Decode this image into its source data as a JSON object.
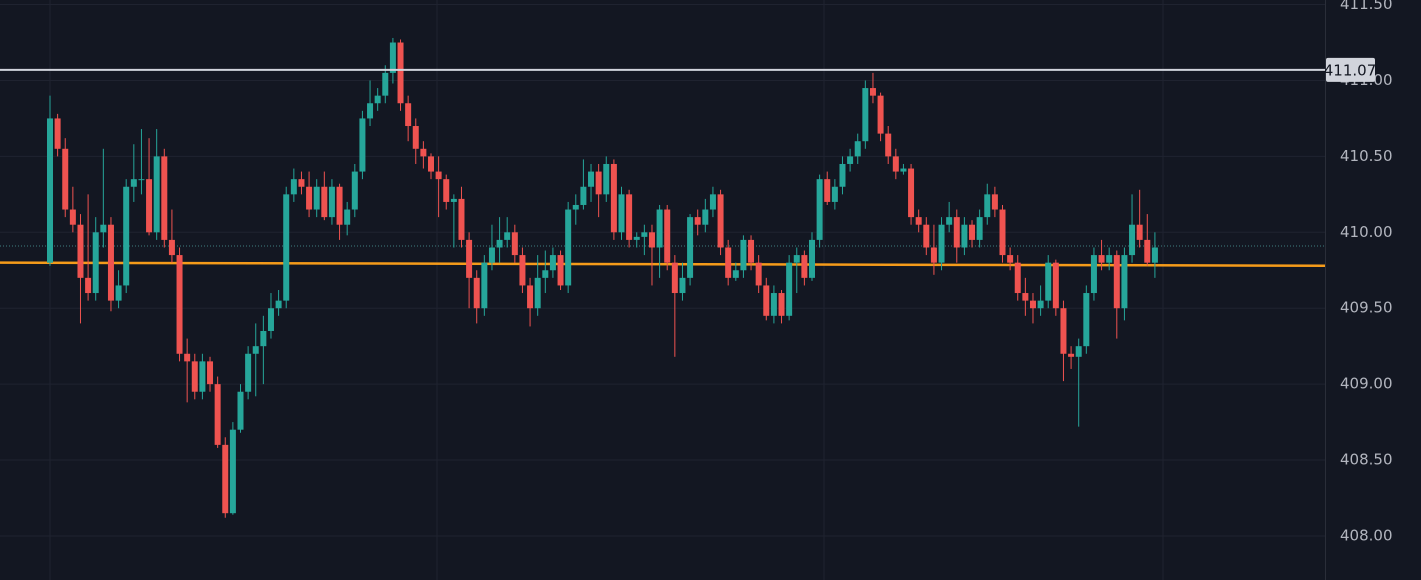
{
  "chart_data": {
    "type": "candlestick",
    "up_color": "#26a69a",
    "down_color": "#ef5350",
    "ylim": [
      407.71,
      411.53
    ],
    "yticks": [
      {
        "value": 408,
        "label": "408.00"
      },
      {
        "value": 408.5,
        "label": "408.50"
      },
      {
        "value": 409,
        "label": "409.00"
      },
      {
        "value": 409.5,
        "label": "409.50"
      },
      {
        "value": 410,
        "label": "410.00"
      },
      {
        "value": 410.5,
        "label": "410.50"
      },
      {
        "value": 411,
        "label": "411.00"
      },
      {
        "value": 411.5,
        "label": "411.50"
      }
    ],
    "grid": true,
    "price_line": {
      "value": 411.07,
      "color": "#d1d4dc"
    },
    "trend_line": {
      "start": 409.8,
      "end": 409.78,
      "color": "#f59b1a"
    },
    "last_price_line": {
      "value": 409.91,
      "color": "#3f7f80"
    },
    "candles": [
      [
        409.8,
        410.9,
        409.78,
        410.75
      ],
      [
        410.75,
        410.78,
        410.5,
        410.55
      ],
      [
        410.55,
        410.62,
        410.1,
        410.15
      ],
      [
        410.15,
        410.3,
        410.0,
        410.05
      ],
      [
        410.05,
        410.12,
        409.4,
        409.7
      ],
      [
        409.7,
        410.25,
        409.55,
        409.6
      ],
      [
        409.6,
        410.1,
        409.55,
        410.0
      ],
      [
        410.0,
        410.55,
        409.9,
        410.05
      ],
      [
        410.05,
        410.1,
        409.48,
        409.55
      ],
      [
        409.55,
        409.75,
        409.5,
        409.65
      ],
      [
        409.65,
        410.35,
        409.6,
        410.3
      ],
      [
        410.3,
        410.58,
        410.2,
        410.35
      ],
      [
        410.35,
        410.68,
        410.25,
        410.35
      ],
      [
        410.35,
        410.62,
        409.98,
        410.0
      ],
      [
        410.0,
        410.68,
        409.95,
        410.5
      ],
      [
        410.5,
        410.55,
        409.9,
        409.95
      ],
      [
        409.95,
        410.15,
        409.8,
        409.85
      ],
      [
        409.85,
        409.9,
        409.15,
        409.2
      ],
      [
        409.2,
        409.3,
        408.88,
        409.15
      ],
      [
        409.15,
        409.2,
        408.9,
        408.95
      ],
      [
        408.95,
        409.2,
        408.9,
        409.15
      ],
      [
        409.15,
        409.18,
        408.95,
        409.0
      ],
      [
        409.0,
        409.05,
        408.58,
        408.6
      ],
      [
        408.6,
        408.65,
        408.12,
        408.15
      ],
      [
        408.15,
        408.75,
        408.14,
        408.7
      ],
      [
        408.7,
        409.0,
        408.68,
        408.95
      ],
      [
        408.95,
        409.25,
        408.9,
        409.2
      ],
      [
        409.2,
        409.4,
        408.92,
        409.25
      ],
      [
        409.25,
        409.45,
        409.0,
        409.35
      ],
      [
        409.35,
        409.6,
        409.3,
        409.5
      ],
      [
        409.5,
        409.62,
        409.45,
        409.55
      ],
      [
        409.55,
        410.3,
        409.5,
        410.25
      ],
      [
        410.25,
        410.42,
        410.2,
        410.35
      ],
      [
        410.35,
        410.4,
        410.25,
        410.3
      ],
      [
        410.3,
        410.4,
        410.1,
        410.15
      ],
      [
        410.15,
        410.35,
        410.1,
        410.3
      ],
      [
        410.3,
        410.4,
        410.08,
        410.1
      ],
      [
        410.1,
        410.35,
        410.05,
        410.3
      ],
      [
        410.3,
        410.32,
        409.95,
        410.05
      ],
      [
        410.05,
        410.2,
        409.98,
        410.15
      ],
      [
        410.15,
        410.45,
        410.1,
        410.4
      ],
      [
        410.4,
        410.8,
        410.35,
        410.75
      ],
      [
        410.75,
        411.0,
        410.7,
        410.85
      ],
      [
        410.85,
        410.95,
        410.8,
        410.9
      ],
      [
        410.9,
        411.1,
        410.85,
        411.05
      ],
      [
        411.05,
        411.28,
        410.98,
        411.25
      ],
      [
        411.25,
        411.27,
        410.8,
        410.85
      ],
      [
        410.85,
        410.9,
        410.6,
        410.7
      ],
      [
        410.7,
        410.75,
        410.45,
        410.55
      ],
      [
        410.55,
        410.6,
        410.42,
        410.5
      ],
      [
        410.5,
        410.52,
        410.35,
        410.4
      ],
      [
        410.4,
        410.5,
        410.1,
        410.35
      ],
      [
        410.35,
        410.38,
        410.15,
        410.2
      ],
      [
        410.2,
        410.25,
        409.9,
        410.22
      ],
      [
        410.22,
        410.3,
        409.9,
        409.95
      ],
      [
        409.95,
        410.0,
        409.5,
        409.7
      ],
      [
        409.7,
        409.75,
        409.4,
        409.5
      ],
      [
        409.5,
        409.85,
        409.45,
        409.8
      ],
      [
        409.8,
        410.05,
        409.75,
        409.9
      ],
      [
        409.9,
        410.1,
        409.8,
        409.95
      ],
      [
        409.95,
        410.1,
        409.9,
        410.0
      ],
      [
        410.0,
        410.05,
        409.8,
        409.85
      ],
      [
        409.85,
        409.9,
        409.6,
        409.65
      ],
      [
        409.65,
        409.7,
        409.38,
        409.5
      ],
      [
        409.5,
        409.85,
        409.45,
        409.7
      ],
      [
        409.7,
        409.88,
        409.6,
        409.75
      ],
      [
        409.75,
        409.9,
        409.7,
        409.85
      ],
      [
        409.85,
        409.88,
        409.62,
        409.65
      ],
      [
        409.65,
        410.2,
        409.6,
        410.15
      ],
      [
        410.15,
        410.25,
        410.05,
        410.18
      ],
      [
        410.18,
        410.48,
        410.15,
        410.3
      ],
      [
        410.3,
        410.45,
        410.2,
        410.4
      ],
      [
        410.4,
        410.45,
        410.1,
        410.25
      ],
      [
        410.25,
        410.5,
        410.2,
        410.45
      ],
      [
        410.45,
        410.48,
        409.95,
        410.0
      ],
      [
        410.0,
        410.3,
        409.95,
        410.25
      ],
      [
        410.25,
        410.28,
        409.9,
        409.95
      ],
      [
        409.95,
        410.0,
        409.9,
        409.97
      ],
      [
        409.97,
        410.05,
        409.85,
        410.0
      ],
      [
        410.0,
        410.05,
        409.65,
        409.9
      ],
      [
        409.9,
        410.18,
        409.7,
        410.15
      ],
      [
        410.15,
        410.18,
        409.75,
        409.8
      ],
      [
        409.8,
        409.85,
        409.18,
        409.6
      ],
      [
        409.6,
        409.8,
        409.55,
        409.7
      ],
      [
        409.7,
        410.12,
        409.65,
        410.1
      ],
      [
        410.1,
        410.15,
        409.98,
        410.05
      ],
      [
        410.05,
        410.22,
        410.0,
        410.15
      ],
      [
        410.15,
        410.3,
        410.1,
        410.25
      ],
      [
        410.25,
        410.28,
        409.85,
        409.9
      ],
      [
        409.9,
        409.95,
        409.65,
        409.7
      ],
      [
        409.7,
        409.8,
        409.68,
        409.75
      ],
      [
        409.75,
        409.98,
        409.7,
        409.95
      ],
      [
        409.95,
        409.98,
        409.75,
        409.8
      ],
      [
        409.8,
        409.85,
        409.6,
        409.65
      ],
      [
        409.65,
        409.7,
        409.42,
        409.45
      ],
      [
        409.45,
        409.65,
        409.4,
        409.6
      ],
      [
        409.6,
        409.62,
        409.4,
        409.45
      ],
      [
        409.45,
        409.85,
        409.42,
        409.8
      ],
      [
        409.8,
        409.9,
        409.6,
        409.85
      ],
      [
        409.85,
        409.88,
        409.65,
        409.7
      ],
      [
        409.7,
        410.0,
        409.68,
        409.95
      ],
      [
        409.95,
        410.38,
        409.9,
        410.35
      ],
      [
        410.35,
        410.4,
        410.18,
        410.2
      ],
      [
        410.2,
        410.35,
        410.15,
        410.3
      ],
      [
        410.3,
        410.5,
        410.25,
        410.45
      ],
      [
        410.45,
        410.55,
        410.4,
        410.5
      ],
      [
        410.5,
        410.65,
        410.45,
        410.6
      ],
      [
        410.6,
        411.0,
        410.55,
        410.95
      ],
      [
        410.95,
        411.05,
        410.85,
        410.9
      ],
      [
        410.9,
        410.92,
        410.6,
        410.65
      ],
      [
        410.65,
        410.7,
        410.45,
        410.5
      ],
      [
        410.5,
        410.55,
        410.35,
        410.4
      ],
      [
        410.4,
        410.45,
        410.38,
        410.42
      ],
      [
        410.42,
        410.45,
        410.05,
        410.1
      ],
      [
        410.1,
        410.15,
        410.0,
        410.05
      ],
      [
        410.05,
        410.1,
        409.85,
        409.9
      ],
      [
        409.9,
        410.05,
        409.72,
        409.8
      ],
      [
        409.8,
        410.1,
        409.75,
        410.05
      ],
      [
        410.05,
        410.2,
        410.0,
        410.1
      ],
      [
        410.1,
        410.15,
        409.8,
        409.9
      ],
      [
        409.9,
        410.1,
        409.85,
        410.05
      ],
      [
        410.05,
        410.08,
        409.9,
        409.95
      ],
      [
        409.95,
        410.15,
        409.9,
        410.1
      ],
      [
        410.1,
        410.32,
        410.05,
        410.25
      ],
      [
        410.25,
        410.3,
        410.1,
        410.15
      ],
      [
        410.15,
        410.18,
        409.8,
        409.85
      ],
      [
        409.85,
        409.9,
        409.75,
        409.8
      ],
      [
        409.8,
        409.85,
        409.55,
        409.6
      ],
      [
        409.6,
        409.7,
        409.45,
        409.55
      ],
      [
        409.55,
        409.6,
        409.4,
        409.5
      ],
      [
        409.5,
        409.65,
        409.45,
        409.55
      ],
      [
        409.55,
        409.85,
        409.5,
        409.8
      ],
      [
        409.8,
        409.82,
        409.45,
        409.5
      ],
      [
        409.5,
        409.55,
        409.02,
        409.2
      ],
      [
        409.2,
        409.25,
        409.1,
        409.18
      ],
      [
        409.18,
        409.3,
        408.72,
        409.25
      ],
      [
        409.25,
        409.65,
        409.2,
        409.6
      ],
      [
        409.6,
        409.9,
        409.55,
        409.85
      ],
      [
        409.85,
        409.95,
        409.75,
        409.8
      ],
      [
        409.8,
        409.9,
        409.75,
        409.85
      ],
      [
        409.85,
        409.88,
        409.3,
        409.5
      ],
      [
        409.5,
        409.9,
        409.42,
        409.85
      ],
      [
        409.85,
        410.25,
        409.8,
        410.05
      ],
      [
        410.05,
        410.28,
        409.9,
        409.95
      ],
      [
        409.95,
        410.12,
        409.78,
        409.8
      ],
      [
        409.8,
        410.0,
        409.7,
        409.9
      ]
    ]
  }
}
